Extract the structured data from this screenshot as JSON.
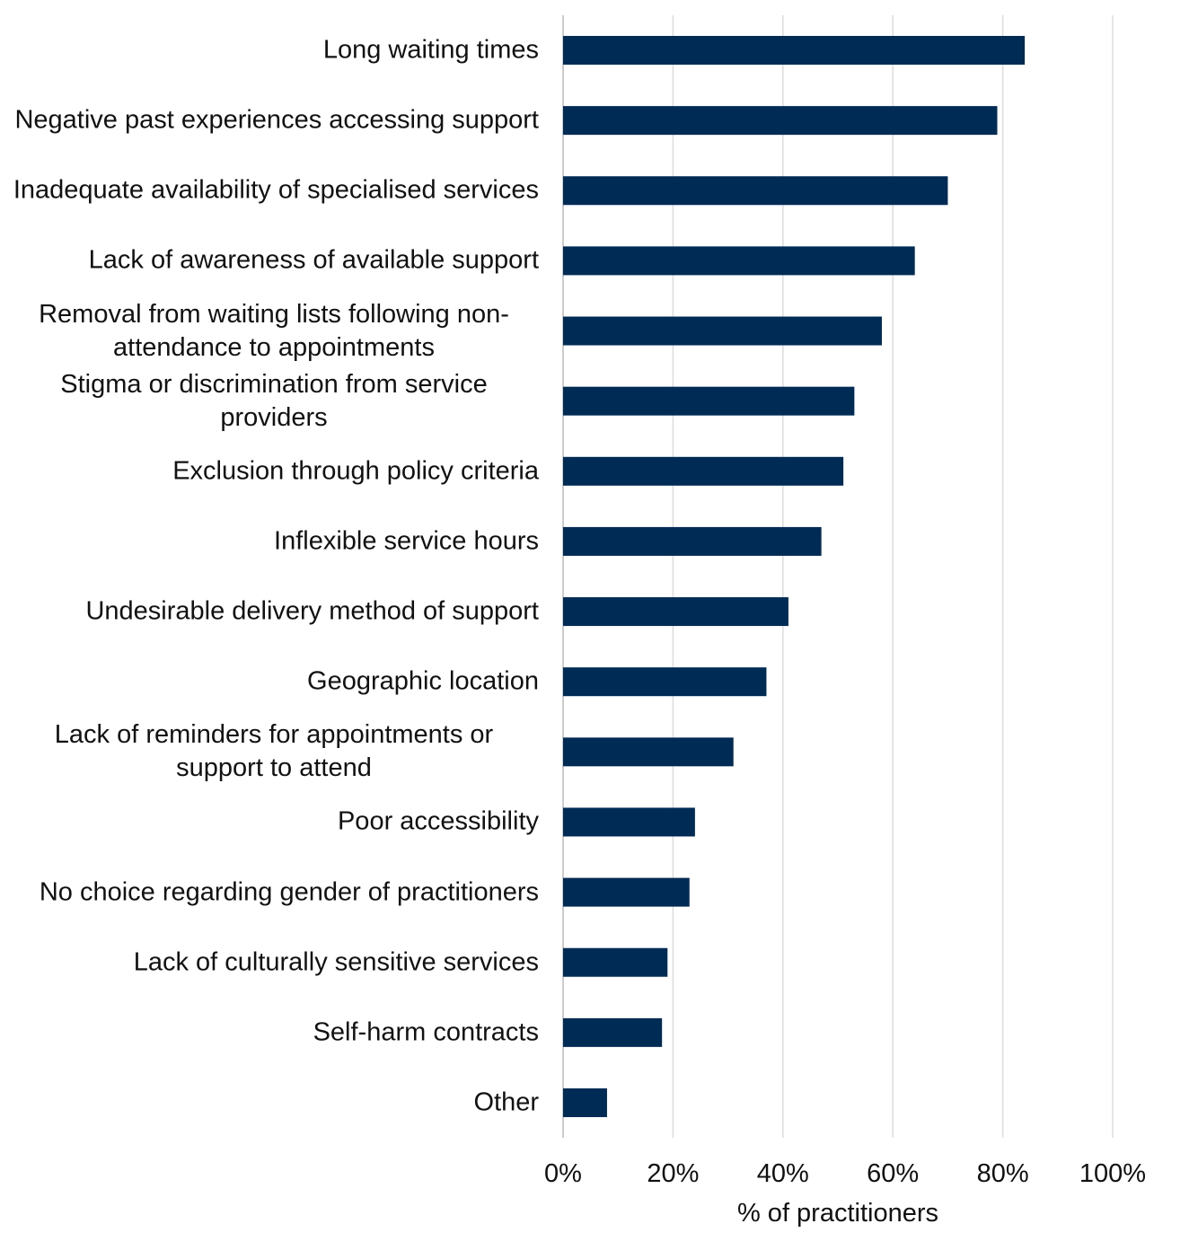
{
  "chart_data": {
    "type": "barh",
    "x_label": "% of practitioners",
    "categories": [
      "Long waiting times",
      "Negative past experiences accessing support",
      "Inadequate availability of specialised services",
      "Lack of awareness of available support",
      "Removal from waiting lists following non-attendance to appointments",
      "Stigma or discrimination from service providers",
      "Exclusion through policy criteria",
      "Inflexible service hours",
      "Undesirable delivery method of support",
      "Geographic location",
      "Lack of reminders for appointments or support to attend",
      "Poor accessibility",
      "No choice regarding gender of practitioners",
      "Lack of culturally sensitive services",
      "Self-harm contracts",
      "Other"
    ],
    "values": [
      84,
      79,
      70,
      64,
      58,
      53,
      51,
      47,
      41,
      37,
      31,
      24,
      23,
      19,
      18,
      8
    ],
    "color": "#002b55",
    "xlim": [
      0,
      100
    ],
    "xticks": [
      {
        "value": 0,
        "label": "0%"
      },
      {
        "value": 20,
        "label": "20%"
      },
      {
        "value": 40,
        "label": "40%"
      },
      {
        "value": 60,
        "label": "60%"
      },
      {
        "value": 80,
        "label": "80%"
      },
      {
        "value": 100,
        "label": "100%"
      }
    ],
    "grid": true
  }
}
